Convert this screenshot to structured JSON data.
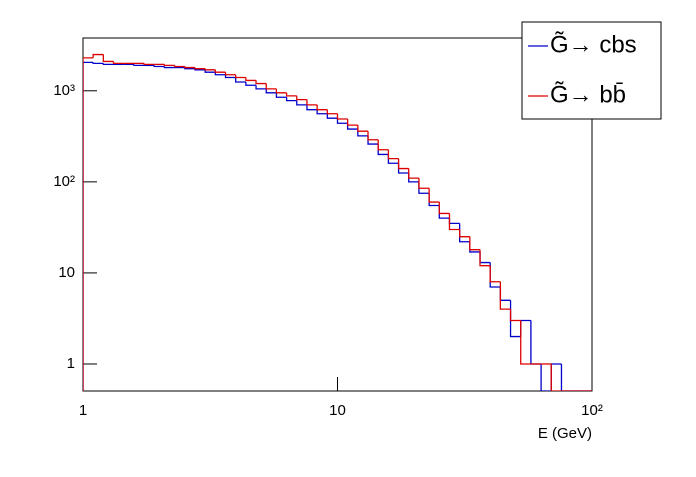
{
  "chart_data": {
    "type": "histogram",
    "x_label": "E (GeV)",
    "log_x": true,
    "log_y": true,
    "xlim": [
      1,
      100
    ],
    "xticks": [
      1,
      10,
      {
        "value": 100,
        "label": "10²"
      }
    ],
    "ylim": [
      0.505,
      3800
    ],
    "yticks": [
      1,
      10,
      {
        "value": 100,
        "label": "10²"
      },
      {
        "value": 1000,
        "label": "10³"
      }
    ],
    "bins": [
      1.0,
      1.096,
      1.202,
      1.318,
      1.445,
      1.585,
      1.738,
      1.905,
      2.089,
      2.291,
      2.512,
      2.754,
      3.02,
      3.311,
      3.631,
      3.981,
      4.365,
      4.786,
      5.248,
      5.754,
      6.31,
      6.918,
      7.586,
      8.318,
      9.12,
      10.0,
      10.96,
      12.02,
      13.18,
      14.45,
      15.85,
      17.38,
      19.05,
      20.89,
      22.91,
      25.12,
      27.54,
      30.2,
      33.11,
      36.31,
      39.81,
      43.65,
      47.86,
      52.48,
      57.54,
      63.1,
      69.18,
      75.86,
      83.18,
      91.2,
      100.0
    ],
    "series": [
      {
        "name": "G̃→ cbs",
        "color": "#0000cc",
        "values": [
          2050,
          2000,
          1950,
          1950,
          1950,
          1900,
          1900,
          1850,
          1800,
          1800,
          1750,
          1700,
          1600,
          1500,
          1400,
          1250,
          1150,
          1050,
          950,
          850,
          780,
          700,
          620,
          560,
          500,
          440,
          380,
          320,
          260,
          200,
          160,
          125,
          100,
          75,
          55,
          40,
          35,
          22,
          17,
          13,
          7,
          5,
          2,
          3,
          1,
          0,
          1,
          0,
          0,
          0
        ]
      },
      {
        "name": "G̃→ bb̄",
        "color": "#dd0000",
        "values": [
          2300,
          2500,
          2100,
          2000,
          2000,
          2000,
          1950,
          1950,
          1900,
          1850,
          1800,
          1750,
          1700,
          1600,
          1500,
          1400,
          1300,
          1200,
          1050,
          950,
          880,
          800,
          700,
          620,
          560,
          490,
          420,
          360,
          290,
          225,
          180,
          140,
          110,
          85,
          60,
          45,
          30,
          25,
          18,
          12,
          8,
          4,
          3,
          1,
          1,
          1,
          0,
          0,
          0,
          0
        ]
      }
    ],
    "legend": "top-right"
  }
}
